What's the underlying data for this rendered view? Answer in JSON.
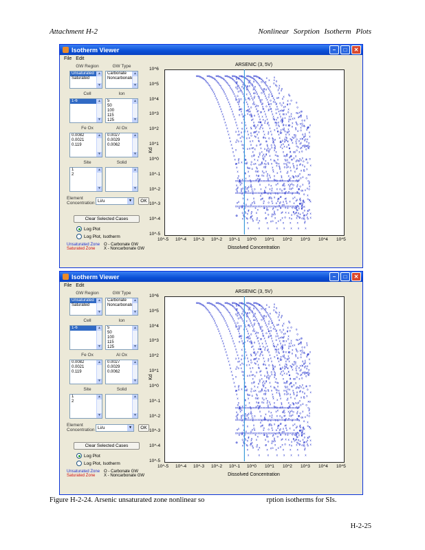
{
  "header": {
    "left": "Attachment    H-2",
    "right": "Nonlinear  Sorption  Isotherm  Plots"
  },
  "caption": {
    "part1": "Figure H-2-24. Arsenic unsaturated zone nonlinear so",
    "part2": "rption isotherms for SIs."
  },
  "page_number": "H-2-25",
  "windows": [
    {
      "title": "Isotherm Viewer",
      "menu": [
        "File",
        "Edit"
      ],
      "panel": {
        "group_labels": [
          "GW Region",
          "GW Type",
          "Cell",
          "Ion",
          "Fe Ox",
          "Al Ox",
          "Site",
          "Solid"
        ],
        "gw_region_items": [
          "Unsaturated",
          "Saturated"
        ],
        "gw_type_items": [
          "Carbonate",
          "Noncarbonate"
        ],
        "cell_items": [
          "1-6"
        ],
        "ion_items": [
          "5",
          "50",
          "100",
          "115",
          "125"
        ],
        "feox_items": [
          "0.0082",
          "0.0021",
          "0.119"
        ],
        "alox_items": [
          "0.0027",
          "0.0029",
          "0.0062"
        ],
        "site_items": [
          "1",
          "2"
        ],
        "contam_label": "Element\nConcentration",
        "contam_value": "Li/u",
        "apply_button": "OK",
        "clear_button": "Clear Selected Cases",
        "radio_1": "Log Plot",
        "radio_2": "Log Plot, Isotherm",
        "legend_unsat": "Unsaturated Zone",
        "legend_sat": "Saturated Zone",
        "legend_carb": "O - Carbonate GW",
        "legend_noncarb": "X - Noncarbonate GW"
      },
      "plot_title": "ARSENIC (3, 5V)",
      "x_label": "Dissolved Concentration",
      "y_label": "Kd"
    },
    {
      "title": "Isotherm Viewer",
      "menu": [
        "File",
        "Edit"
      ],
      "panel": {
        "group_labels": [
          "GW Region",
          "GW Type",
          "Cell",
          "Ion",
          "Fe Ox",
          "Al Ox",
          "Site",
          "Solid"
        ],
        "gw_region_items": [
          "Unsaturated",
          "Saturated"
        ],
        "gw_type_items": [
          "Carbonate",
          "Noncarbonate"
        ],
        "cell_items": [
          "1-6"
        ],
        "ion_items": [
          "5",
          "50",
          "100",
          "115",
          "125"
        ],
        "feox_items": [
          "0.0082",
          "0.0021",
          "0.119"
        ],
        "alox_items": [
          "0.0027",
          "0.0029",
          "0.0062"
        ],
        "site_items": [
          "1",
          "2"
        ],
        "contam_label": "Element\nConcentration",
        "contam_value": "Li/u",
        "apply_button": "OK",
        "clear_button": "Clear Selected Cases",
        "radio_1": "Log Plot",
        "radio_2": "Log Plot, Isotherm",
        "legend_unsat": "Unsaturated Zone",
        "legend_sat": "Saturated Zone",
        "legend_carb": "O - Carbonate GW",
        "legend_noncarb": "X - Noncarbonate GW"
      },
      "plot_title": "ARSENIC (3, 5V)",
      "x_label": "Dissolved Concentration",
      "y_label": "Kd"
    }
  ],
  "chart_data": [
    {
      "type": "scatter",
      "title": "ARSENIC (3, 5V)",
      "xlabel": "Dissolved Concentration",
      "ylabel": "Kd",
      "x_scale": "log",
      "y_scale": "log",
      "x_ticks": [
        "10^-5",
        "10^-4",
        "10^-3",
        "10^-2",
        "10^-1",
        "10^0",
        "10^1",
        "10^2",
        "10^3",
        "10^4",
        "10^5"
      ],
      "y_ticks": [
        "10^6",
        "10^5",
        "10^4",
        "10^3",
        "10^2",
        "10^1",
        "10^0",
        "10^-1",
        "10^-2",
        "10^-3",
        "10^-4",
        "10^-5"
      ],
      "xlim": [
        1e-05,
        100000.0
      ],
      "ylim": [
        1e-05,
        1000000.0
      ],
      "marker_color": "#1020c8",
      "vline_x": 0.3,
      "vline_color": "#3a9ad8",
      "curve_start_exponents": [
        -3.2,
        -2.6,
        -2.1,
        -1.6,
        -1.2,
        -0.8,
        -0.4,
        0.0
      ]
    }
  ]
}
